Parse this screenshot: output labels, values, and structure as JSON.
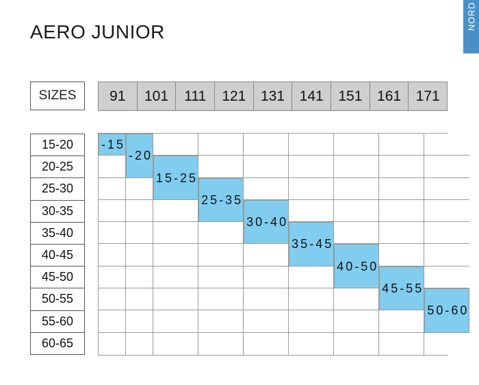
{
  "title": "AERO JUNIOR",
  "side_tab": "NORD",
  "sizes_label": "SIZES",
  "columns": [
    "91",
    "101",
    "111",
    "121",
    "131",
    "141",
    "151",
    "161",
    "171"
  ],
  "rows": [
    "15-20",
    "20-25",
    "25-30",
    "30-35",
    "35-40",
    "40-45",
    "45-50",
    "50-55",
    "55-60",
    "60-65"
  ],
  "markers": [
    {
      "col": 1,
      "row": 1,
      "rowspan": 1,
      "lines": [
        "-15"
      ]
    },
    {
      "col": 2,
      "row": 1,
      "rowspan": 2,
      "lines": [
        "-20"
      ]
    },
    {
      "col": 3,
      "row": 2,
      "rowspan": 2,
      "lines": [
        "15-",
        "25"
      ]
    },
    {
      "col": 4,
      "row": 3,
      "rowspan": 2,
      "lines": [
        "25-",
        "35"
      ]
    },
    {
      "col": 5,
      "row": 4,
      "rowspan": 2,
      "lines": [
        "30-",
        "40"
      ]
    },
    {
      "col": 6,
      "row": 5,
      "rowspan": 2,
      "lines": [
        "35-",
        "45"
      ]
    },
    {
      "col": 7,
      "row": 6,
      "rowspan": 2,
      "lines": [
        "40-",
        "50"
      ]
    },
    {
      "col": 8,
      "row": 7,
      "rowspan": 2,
      "lines": [
        "45-",
        "55"
      ]
    },
    {
      "col": 9,
      "row": 8,
      "rowspan": 2,
      "lines": [
        "50-",
        "60"
      ]
    }
  ],
  "colors": {
    "header_bg": "#cfcfcf",
    "marker_bg": "#80cdf0",
    "tab_bg": "#4a90c8"
  }
}
